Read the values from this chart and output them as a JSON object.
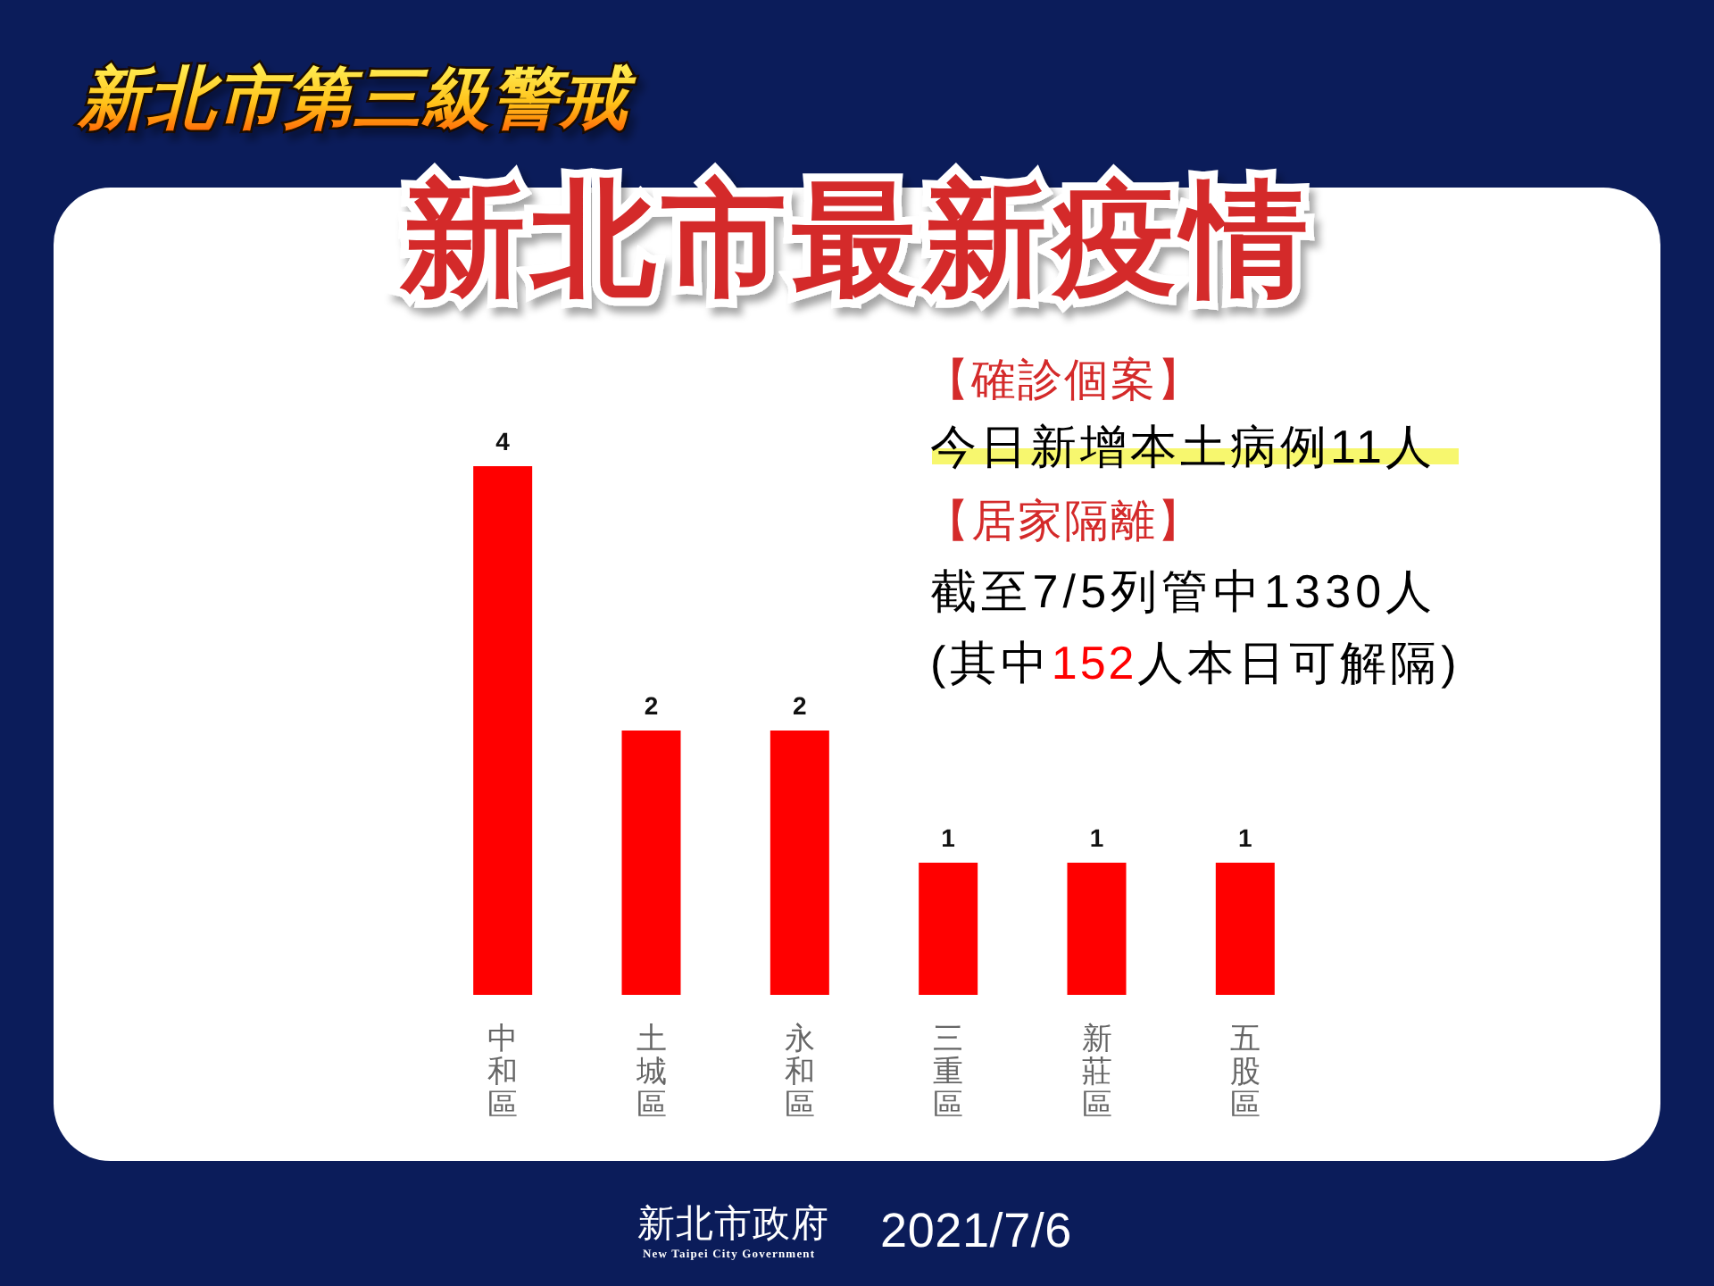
{
  "chart_data": {
    "type": "bar",
    "title": "新北市第三級警戒",
    "subtitle": "新北市最新疫情",
    "categories": [
      "中和區",
      "土城區",
      "永和區",
      "三重區",
      "新莊區",
      "五股區"
    ],
    "values": [
      4,
      2,
      2,
      1,
      1,
      1
    ],
    "color": "#ff0000",
    "data_labels": true,
    "annotations": [
      "【確診個案】",
      "今日新增本土病例11人",
      "【居家隔離】",
      "截至7/5列管中1330人",
      "(其中",
      "152",
      "人本日可解隔)",
      "新北市政府",
      "New Taipei City Government",
      "2021/7/6"
    ]
  }
}
